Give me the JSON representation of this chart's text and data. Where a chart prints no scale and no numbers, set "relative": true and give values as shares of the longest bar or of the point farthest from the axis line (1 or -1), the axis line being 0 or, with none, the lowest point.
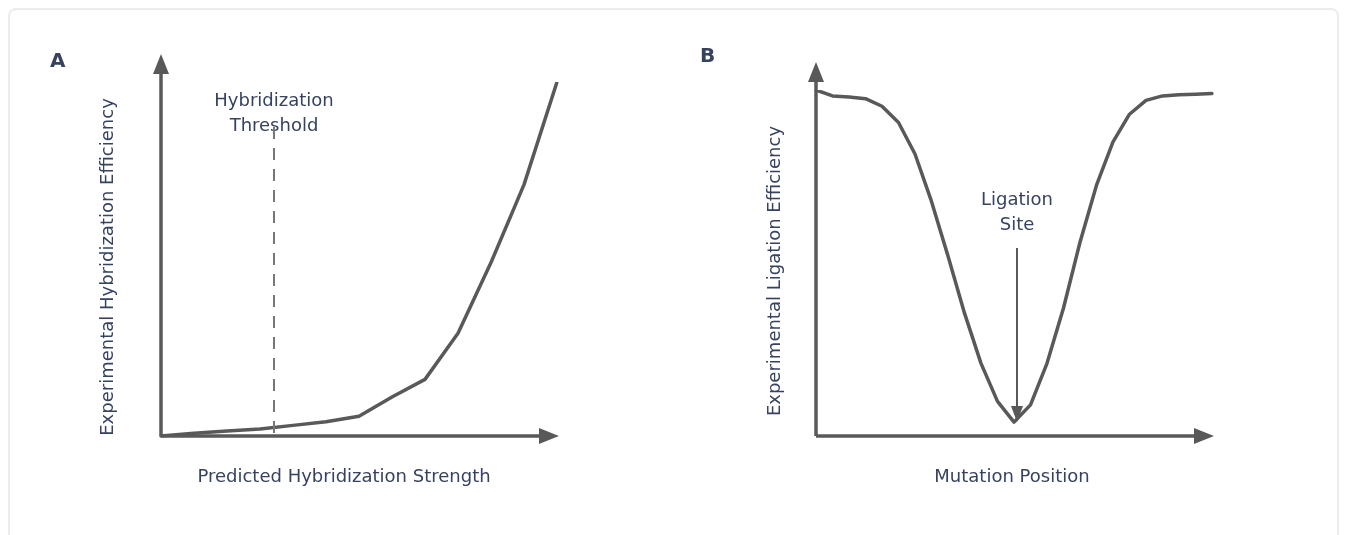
{
  "chart_data": [
    {
      "type": "line",
      "title": "A",
      "xlabel": "Predicted Hybridization Strength",
      "ylabel": "Experimental Hybridization Efficiency",
      "relative": true,
      "tick_labels": false,
      "marker": "none",
      "color": "#595959",
      "categories": [
        null,
        null,
        null,
        null,
        null,
        null,
        null,
        null,
        null,
        null,
        null,
        null,
        null
      ],
      "values": [
        0,
        0.008,
        0.014,
        0.02,
        0.03,
        0.04,
        0.056,
        0.11,
        0.16,
        0.29,
        0.49,
        0.71,
        1.0
      ],
      "annotations": [
        "Hybridization Threshold"
      ]
    },
    {
      "type": "line",
      "title": "B",
      "xlabel": "Mutation Position",
      "ylabel": "Experimental Ligation Efficiency",
      "relative": true,
      "tick_labels": false,
      "marker": "none",
      "color": "#595959",
      "categories": [
        null,
        null,
        null,
        null,
        null,
        null,
        null,
        null,
        null,
        null,
        null,
        null,
        null,
        null,
        null,
        null,
        null,
        null,
        null,
        null,
        null,
        null,
        null,
        null,
        null
      ],
      "values": [
        1.0,
        0.983,
        0.98,
        0.975,
        0.953,
        0.906,
        0.815,
        0.678,
        0.52,
        0.355,
        0.21,
        0.1,
        0.04,
        0.09,
        0.21,
        0.37,
        0.56,
        0.725,
        0.85,
        0.93,
        0.97,
        0.983,
        0.986,
        0.988,
        0.99
      ],
      "annotations": [
        "Ligation Site"
      ]
    }
  ]
}
